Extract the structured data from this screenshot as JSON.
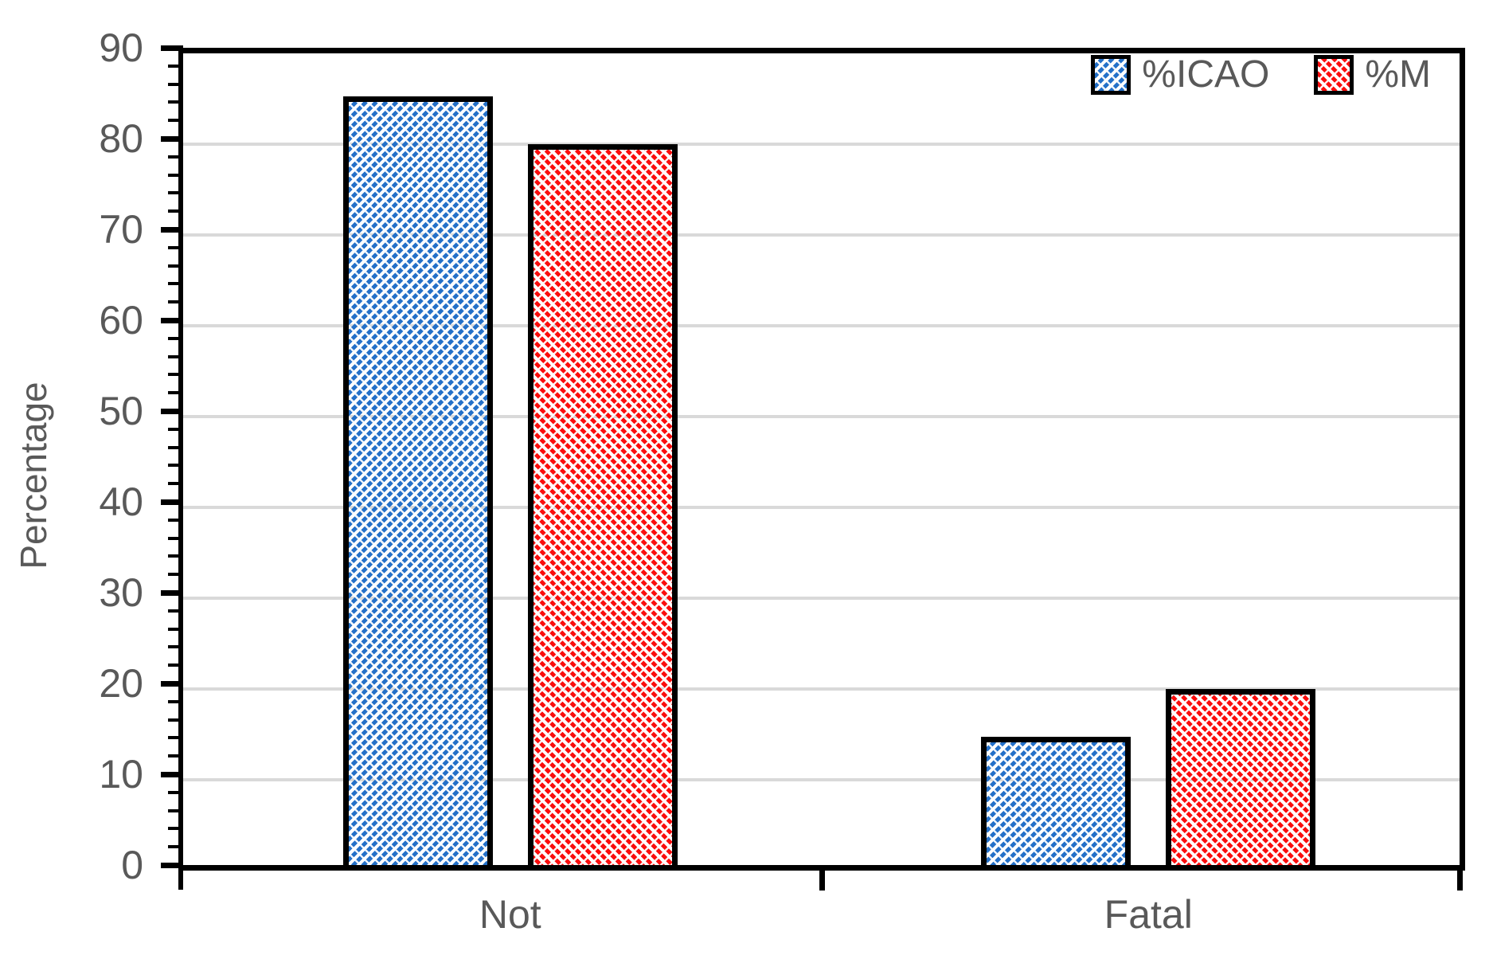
{
  "chart_data": {
    "type": "bar",
    "title": "",
    "ylabel": "Percentage",
    "xlabel": "",
    "categories": [
      "Not",
      "Fatal"
    ],
    "series": [
      {
        "name": "%ICAO",
        "values": [
          85.3,
          14.7
        ],
        "color": "#2470C8",
        "hatch": "forward-diagonal"
      },
      {
        "name": "%M",
        "values": [
          80,
          20
        ],
        "color": "#FB0D0D",
        "hatch": "backward-diagonal"
      }
    ],
    "ylim": [
      0,
      90
    ],
    "y_major_step": 10,
    "y_minor_step": 2,
    "y_tick_labels": [
      "0",
      "10",
      "20",
      "30",
      "40",
      "50",
      "60",
      "70",
      "80",
      "90"
    ],
    "grid": true,
    "legend_position": "top-right",
    "colors": {
      "grid": "#D9D9D9",
      "axis": "#000000",
      "text": "#595959"
    }
  }
}
